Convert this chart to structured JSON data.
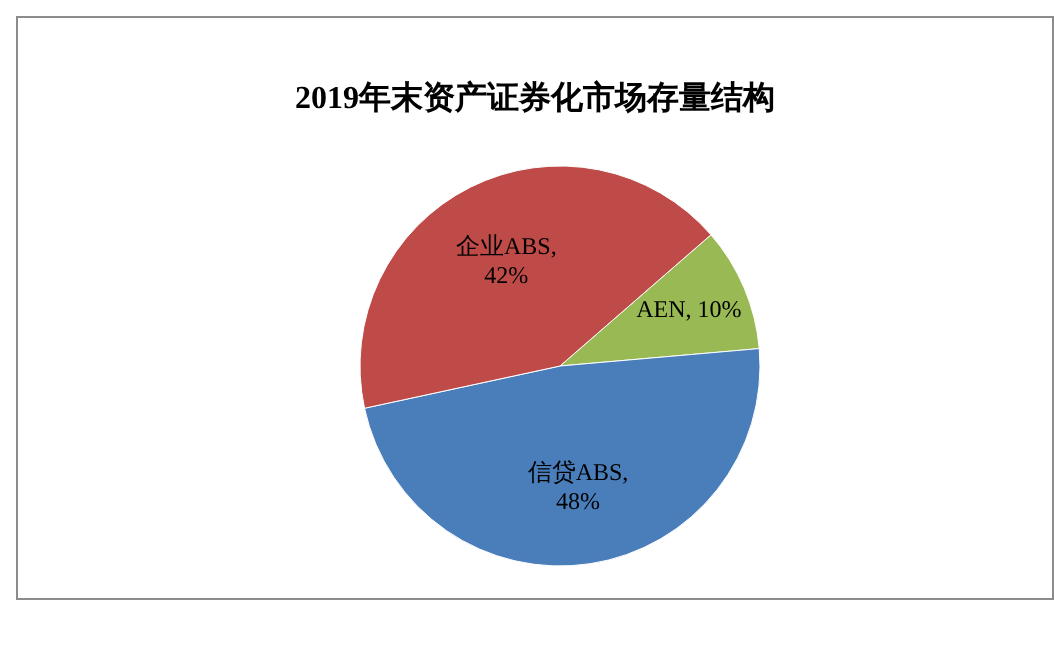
{
  "chart_data": {
    "type": "pie",
    "title": "2019年末资产证券化市场存量结构",
    "categories": [
      "AEN",
      "信贷ABS",
      "企业ABS"
    ],
    "values": [
      10,
      48,
      42
    ],
    "colors": [
      "#98b954",
      "#4a7ebb",
      "#be4b48"
    ],
    "value_labels": [
      ", 10%",
      ", 48%",
      ", 42%"
    ]
  }
}
